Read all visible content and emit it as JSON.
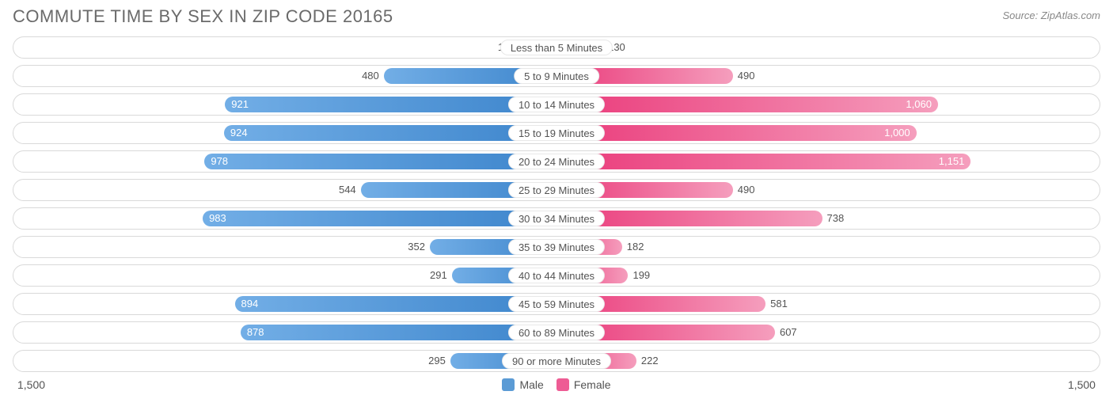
{
  "title": "COMMUTE TIME BY SEX IN ZIP CODE 20165",
  "source": "Source: ZipAtlas.com",
  "axis_max": 1500,
  "axis_label_left": "1,500",
  "axis_label_right": "1,500",
  "colors": {
    "male_start": "#72aee6",
    "male_end": "#3d85cc",
    "female_start": "#f59ebd",
    "female_end": "#ea3a7a",
    "text": "#535353",
    "row_border": "#d9d9d9",
    "title_color": "#6a6a6a",
    "source_color": "#888888",
    "bg": "#ffffff"
  },
  "legend": {
    "male_label": "Male",
    "female_label": "Female",
    "male_swatch": "#5b9bd5",
    "female_swatch": "#ee5c94"
  },
  "inside_threshold": 800,
  "rows": [
    {
      "label": "Less than 5 Minutes",
      "male": 102,
      "male_display": "102",
      "female": 130,
      "female_display": "130"
    },
    {
      "label": "5 to 9 Minutes",
      "male": 480,
      "male_display": "480",
      "female": 490,
      "female_display": "490"
    },
    {
      "label": "10 to 14 Minutes",
      "male": 921,
      "male_display": "921",
      "female": 1060,
      "female_display": "1,060"
    },
    {
      "label": "15 to 19 Minutes",
      "male": 924,
      "male_display": "924",
      "female": 1000,
      "female_display": "1,000"
    },
    {
      "label": "20 to 24 Minutes",
      "male": 978,
      "male_display": "978",
      "female": 1151,
      "female_display": "1,151"
    },
    {
      "label": "25 to 29 Minutes",
      "male": 544,
      "male_display": "544",
      "female": 490,
      "female_display": "490"
    },
    {
      "label": "30 to 34 Minutes",
      "male": 983,
      "male_display": "983",
      "female": 738,
      "female_display": "738"
    },
    {
      "label": "35 to 39 Minutes",
      "male": 352,
      "male_display": "352",
      "female": 182,
      "female_display": "182"
    },
    {
      "label": "40 to 44 Minutes",
      "male": 291,
      "male_display": "291",
      "female": 199,
      "female_display": "199"
    },
    {
      "label": "45 to 59 Minutes",
      "male": 894,
      "male_display": "894",
      "female": 581,
      "female_display": "581"
    },
    {
      "label": "60 to 89 Minutes",
      "male": 878,
      "male_display": "878",
      "female": 607,
      "female_display": "607"
    },
    {
      "label": "90 or more Minutes",
      "male": 295,
      "male_display": "295",
      "female": 222,
      "female_display": "222"
    }
  ]
}
